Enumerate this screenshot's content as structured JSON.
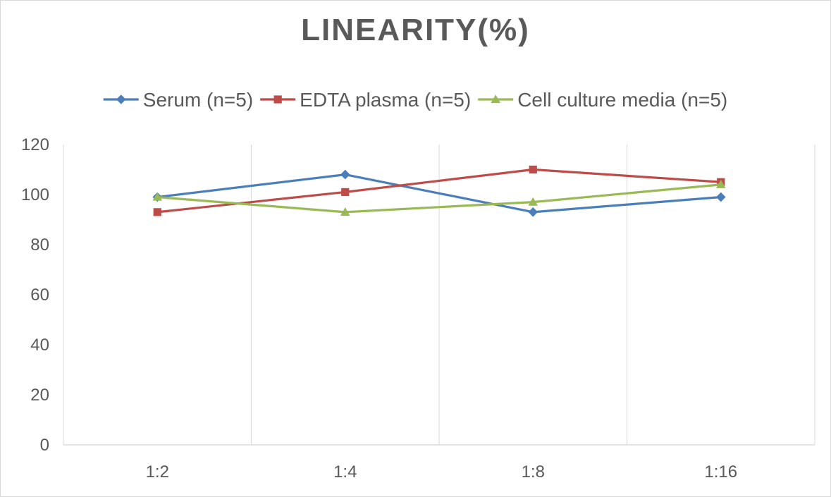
{
  "chart_data": {
    "type": "line",
    "title": "LINEARITY(%)",
    "categories": [
      "1:2",
      "1:4",
      "1:8",
      "1:16"
    ],
    "ylim": [
      0,
      120
    ],
    "yticks": [
      0,
      20,
      40,
      60,
      80,
      100,
      120
    ],
    "grid": "vertical",
    "legend": "top",
    "series": [
      {
        "name": "Serum (n=5)",
        "values": [
          99,
          108,
          93,
          99
        ],
        "color": "#4a7ebb",
        "marker": "diamond"
      },
      {
        "name": "EDTA plasma (n=5)",
        "values": [
          93,
          101,
          110,
          105
        ],
        "color": "#be4b48",
        "marker": "square"
      },
      {
        "name": "Cell culture media (n=5)",
        "values": [
          99,
          93,
          97,
          104
        ],
        "color": "#98b954",
        "marker": "triangle"
      }
    ]
  }
}
